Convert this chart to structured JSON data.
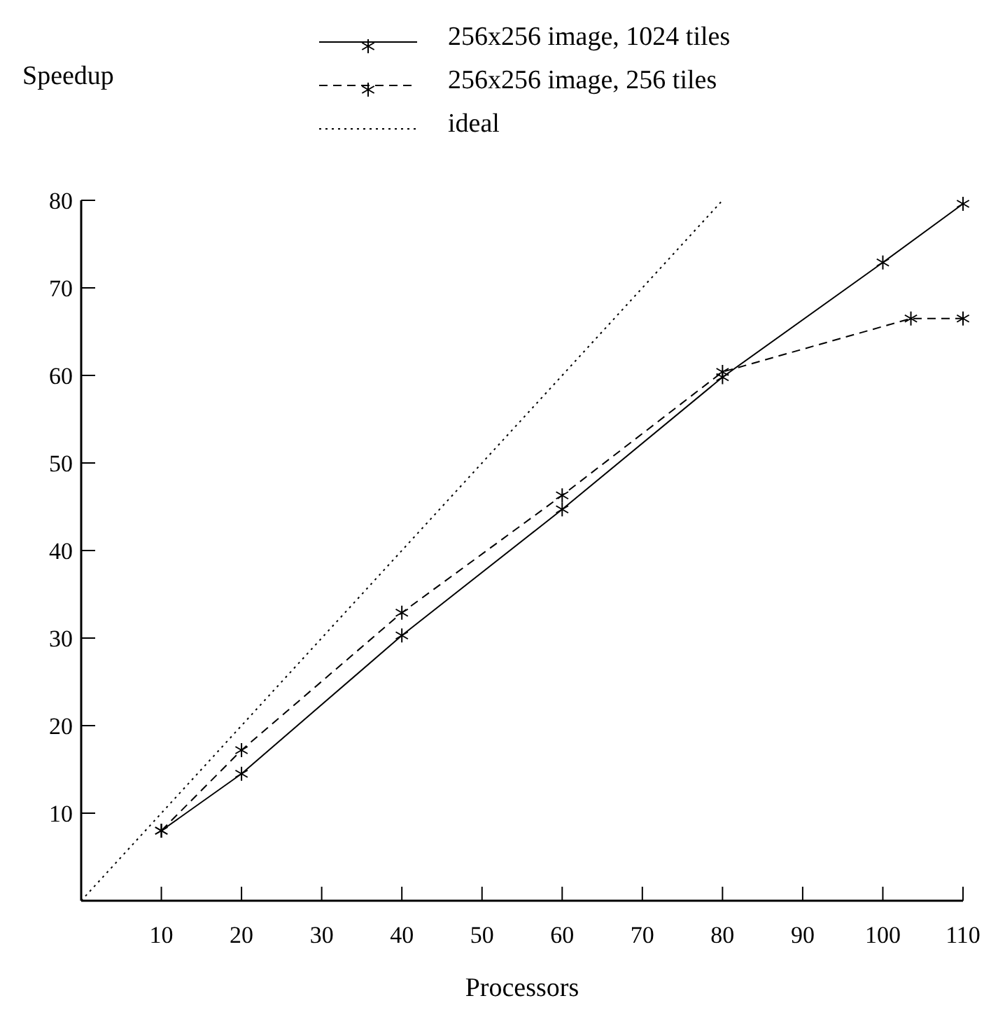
{
  "chart_data": {
    "type": "line",
    "ylabel": "Speedup",
    "xlabel": "Processors",
    "xlim": [
      0,
      110
    ],
    "xticks": [
      10,
      20,
      30,
      40,
      50,
      60,
      70,
      80,
      90,
      100,
      110
    ],
    "ylim": [
      0,
      80
    ],
    "yticks": [
      10,
      20,
      30,
      40,
      50,
      60,
      70,
      80
    ],
    "legend": "top",
    "grid": false,
    "series": [
      {
        "name": "256x256 image, 1024 tiles",
        "color": "#000000",
        "marker": "cross",
        "line_style": "solid",
        "x": [
          10,
          20,
          40,
          60,
          80,
          100,
          110
        ],
        "values": [
          8.0,
          14.5,
          30.3,
          44.7,
          59.8,
          72.9,
          79.6
        ]
      },
      {
        "name": "256x256 image, 256 tiles",
        "color": "#000000",
        "marker": "cross",
        "line_style": "dashed",
        "x": [
          10,
          20,
          40,
          60,
          80,
          103.5,
          110
        ],
        "values": [
          8.0,
          17.2,
          32.9,
          46.3,
          60.4,
          66.5,
          66.5
        ]
      },
      {
        "name": "ideal",
        "color": "#000000",
        "marker": "none",
        "line_style": "dotted",
        "x": [
          0,
          80
        ],
        "values": [
          0,
          80
        ]
      }
    ]
  }
}
